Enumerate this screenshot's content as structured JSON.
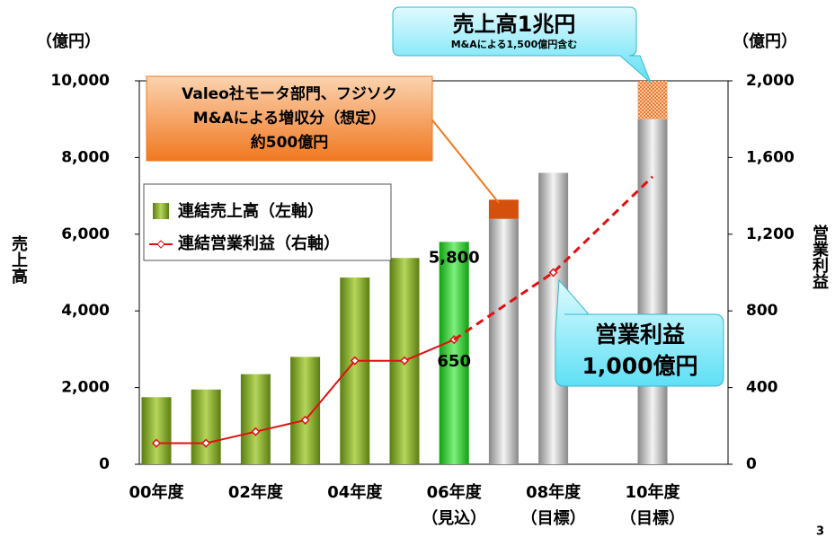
{
  "chart_data": {
    "type": "bar",
    "categories": [
      "00年度",
      null,
      "02年度",
      null,
      "04年度",
      null,
      "06年度",
      null,
      "08年度",
      null,
      "10年度",
      null
    ],
    "category_notes": [
      null,
      null,
      null,
      null,
      null,
      null,
      "（見込）",
      null,
      "（目標）",
      null,
      "（目標）",
      null
    ],
    "ylim": [
      0,
      10000
    ],
    "yticks": [
      0,
      {
        "value": 2000,
        "label": "2,000"
      },
      {
        "value": 4000,
        "label": "4,000"
      },
      {
        "value": 6000,
        "label": "6,000"
      },
      {
        "value": 8000,
        "label": "8,000"
      },
      {
        "value": 10000,
        "label": "10,000"
      }
    ],
    "y2lim": [
      0,
      2000
    ],
    "y2ticks": [
      0,
      400,
      800,
      {
        "value": 1200,
        "label": "1,200"
      },
      {
        "value": 1600,
        "label": "1,600"
      },
      {
        "value": 2000,
        "label": "2,000"
      }
    ],
    "ylabel": "売上高",
    "y2label": "営業利益",
    "yunit": "（億円）",
    "y2unit": "（億円）",
    "series": [
      {
        "name": "連結売上高（左軸）",
        "kind": "bar",
        "color": "#6f9a1e",
        "colors": [
          "#6f9a1e",
          "#6f9a1e",
          "#6f9a1e",
          "#6f9a1e",
          "#6f9a1e",
          "#6f9a1e",
          "#22c322",
          "#a8a8a8",
          "#a8a8a8",
          null,
          "#a8a8a8",
          null
        ],
        "values": [
          1750,
          1950,
          2350,
          2800,
          4870,
          5380,
          5800,
          6400,
          7600,
          null,
          9000,
          null
        ],
        "value_labels": [
          null,
          null,
          null,
          null,
          null,
          null,
          "5,800",
          null,
          null,
          null,
          null,
          null
        ]
      },
      {
        "kind": "stack",
        "colors": [
          null,
          null,
          null,
          null,
          null,
          null,
          null,
          "#d4500c",
          null,
          null,
          "#f08a4a",
          null
        ],
        "values": [
          null,
          null,
          null,
          null,
          null,
          null,
          null,
          500,
          null,
          null,
          1000,
          null
        ]
      },
      {
        "name": "連結営業利益（右軸）",
        "kind": "line",
        "axis": "y2",
        "color": "#e01010",
        "values": [
          110,
          110,
          170,
          230,
          540,
          540,
          650,
          null,
          null,
          null,
          null,
          null
        ],
        "value_labels": [
          null,
          null,
          null,
          null,
          null,
          null,
          "650",
          null,
          null,
          null,
          null,
          null
        ]
      },
      {
        "kind": "line",
        "axis": "y2",
        "color": "#e01010",
        "dashed": true,
        "x": [
          6,
          8,
          10
        ],
        "values": [
          650,
          1000,
          1500
        ]
      }
    ],
    "annotations": {
      "sales_title": "売上高1兆円",
      "sales_note": "M&Aによる1,500億円含む",
      "ma_lines": [
        "Valeo社モータ部門、フジソク",
        "M&Aによる増収分（想定）",
        "約500億円"
      ],
      "profit_lines": [
        "営業利益",
        "1,000億円"
      ]
    },
    "page_number": "3"
  }
}
